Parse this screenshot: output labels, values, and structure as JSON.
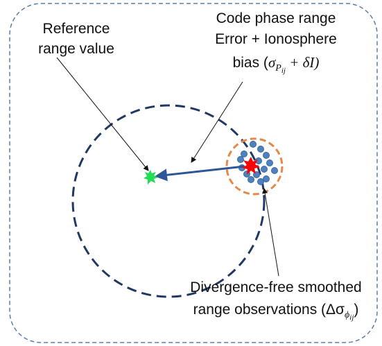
{
  "labels": {
    "reference": [
      "Reference",
      "range value"
    ],
    "code_phase": {
      "lines": [
        "Code phase range",
        "Error + Ionosphere"
      ],
      "bias": {
        "prefix": "bias (",
        "sigma": "σ",
        "sub": "P",
        "subsub": "ij",
        "rest": " + δI)"
      }
    },
    "divergence": {
      "line1": "Divergence-free smoothed",
      "line2": {
        "prefix": "range observations (Δσ",
        "sub": "ϕ",
        "subsub": "ij",
        "rest": ")"
      }
    }
  }
}
